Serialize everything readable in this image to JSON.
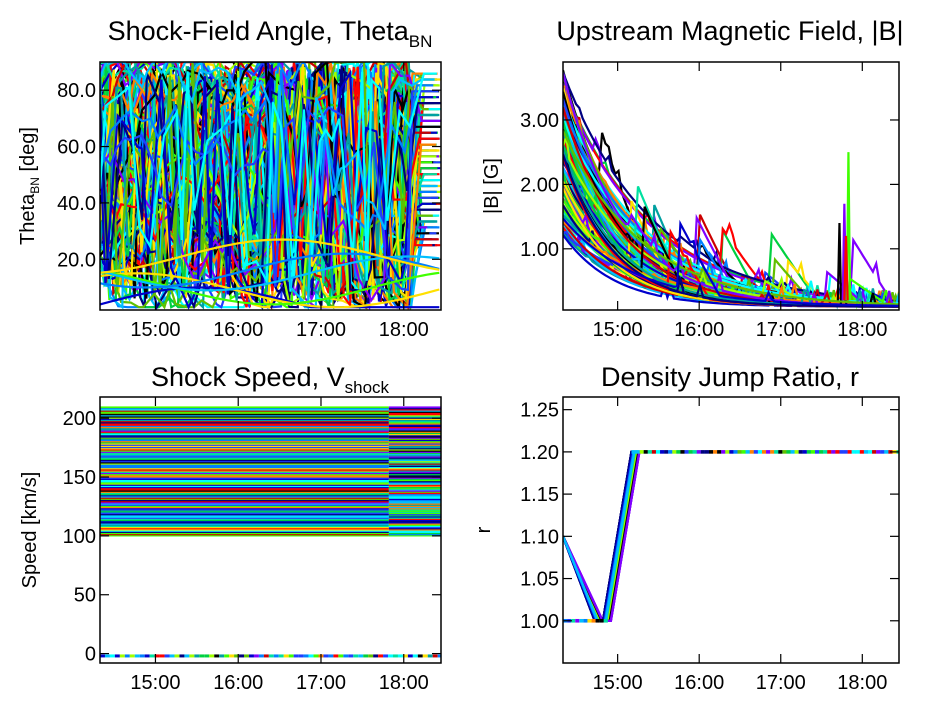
{
  "chart_data": [
    {
      "type": "line",
      "title": "Shock-Field Angle, Theta",
      "title_sub": "BN",
      "ylabel": "Theta",
      "ylabel_sub": "BN",
      "ylabel_unit": " [deg]",
      "x_tick_labels": [
        "15:00",
        "16:00",
        "17:00",
        "18:00"
      ],
      "x_ticks_hours": [
        15,
        16,
        17,
        18
      ],
      "xlim_hours": [
        14.33,
        18.45
      ],
      "y_tick_labels": [
        "20.0",
        "40.0",
        "60.0",
        "80.0"
      ],
      "y_ticks": [
        20,
        40,
        60,
        80
      ],
      "ylim": [
        2,
        90
      ],
      "description_series": "many overlapping colored series, values 3-90 deg"
    },
    {
      "type": "line",
      "title": "Upstream Magnetic Field, |B|",
      "ylabel": "|B| [G]",
      "x_tick_labels": [
        "15:00",
        "16:00",
        "17:00",
        "18:00"
      ],
      "x_ticks_hours": [
        15,
        16,
        17,
        18
      ],
      "xlim_hours": [
        14.33,
        18.45
      ],
      "y_tick_labels": [
        "1.00",
        "2.00",
        "3.00"
      ],
      "y_ticks": [
        1,
        2,
        3
      ],
      "ylim": [
        0.05,
        3.9
      ]
    },
    {
      "type": "line",
      "title": "Shock Speed, V",
      "title_sub": "shock",
      "ylabel": "Speed [km/s]",
      "x_tick_labels": [
        "15:00",
        "16:00",
        "17:00",
        "18:00"
      ],
      "x_ticks_hours": [
        15,
        16,
        17,
        18
      ],
      "xlim_hours": [
        14.33,
        18.45
      ],
      "y_tick_labels": [
        "0",
        "50",
        "100",
        "150",
        "200"
      ],
      "y_ticks": [
        0,
        50,
        100,
        150,
        200
      ],
      "ylim": [
        -8,
        218
      ],
      "band_range": [
        100,
        210
      ]
    },
    {
      "type": "line",
      "title": "Density Jump Ratio, r",
      "ylabel": "r",
      "x_tick_labels": [
        "15:00",
        "16:00",
        "17:00",
        "18:00"
      ],
      "x_ticks_hours": [
        15,
        16,
        17,
        18
      ],
      "xlim_hours": [
        14.33,
        18.45
      ],
      "y_tick_labels": [
        "1.00",
        "1.05",
        "1.10",
        "1.15",
        "1.20",
        "1.25"
      ],
      "y_ticks": [
        1.0,
        1.05,
        1.1,
        1.15,
        1.2,
        1.25
      ],
      "ylim": [
        0.95,
        1.265
      ],
      "profile_x_hours": [
        14.33,
        14.72,
        14.82,
        15.17,
        18.45
      ],
      "profile_y": [
        1.1,
        1.0,
        1.0,
        1.2,
        1.2
      ]
    }
  ],
  "palette": [
    "#000080",
    "#0000cc",
    "#1f3fff",
    "#0080ff",
    "#00bfff",
    "#00ffff",
    "#00e0a0",
    "#00d040",
    "#40ff00",
    "#a0ff00",
    "#ffe000",
    "#ff8000",
    "#ff0000",
    "#cc0000",
    "#000000",
    "#8000ff",
    "#00a0a0",
    "#60c000"
  ]
}
